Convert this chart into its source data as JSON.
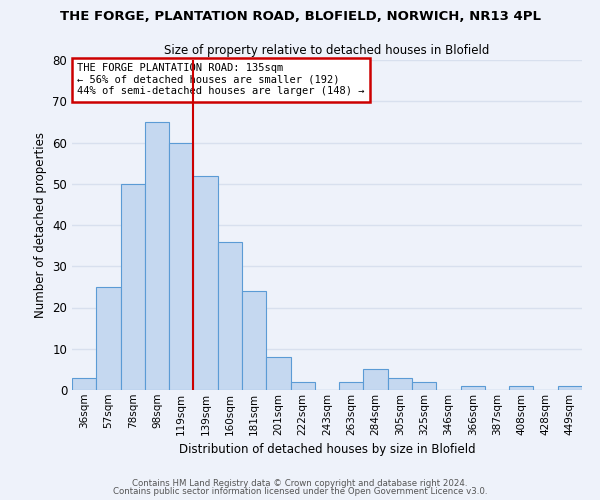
{
  "title": "THE FORGE, PLANTATION ROAD, BLOFIELD, NORWICH, NR13 4PL",
  "subtitle": "Size of property relative to detached houses in Blofield",
  "xlabel": "Distribution of detached houses by size in Blofield",
  "ylabel": "Number of detached properties",
  "bin_labels": [
    "36sqm",
    "57sqm",
    "78sqm",
    "98sqm",
    "119sqm",
    "139sqm",
    "160sqm",
    "181sqm",
    "201sqm",
    "222sqm",
    "243sqm",
    "263sqm",
    "284sqm",
    "305sqm",
    "325sqm",
    "346sqm",
    "366sqm",
    "387sqm",
    "408sqm",
    "428sqm",
    "449sqm"
  ],
  "bar_heights": [
    3,
    25,
    50,
    65,
    60,
    52,
    36,
    24,
    8,
    2,
    0,
    2,
    5,
    3,
    2,
    0,
    1,
    0,
    1,
    0,
    1
  ],
  "bar_color": "#c5d8f0",
  "bar_edge_color": "#5b9bd5",
  "vline_x_index": 4.5,
  "vline_color": "#cc0000",
  "annotation_text": "THE FORGE PLANTATION ROAD: 135sqm\n← 56% of detached houses are smaller (192)\n44% of semi-detached houses are larger (148) →",
  "annotation_box_color": "#ffffff",
  "annotation_box_edge": "#cc0000",
  "ylim": [
    0,
    80
  ],
  "yticks": [
    0,
    10,
    20,
    30,
    40,
    50,
    60,
    70,
    80
  ],
  "footer_line1": "Contains HM Land Registry data © Crown copyright and database right 2024.",
  "footer_line2": "Contains public sector information licensed under the Open Government Licence v3.0.",
  "background_color": "#eef2fa",
  "grid_color": "#d8e0ee"
}
